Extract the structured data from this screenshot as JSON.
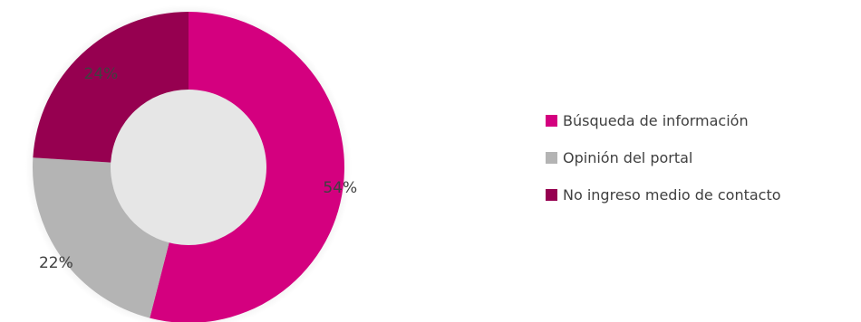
{
  "chart_data": {
    "type": "pie",
    "donut": true,
    "labels": [
      "Búsqueda de información",
      "Opinión del portal",
      "No ingreso medio de contacto"
    ],
    "values": [
      54,
      22,
      24
    ],
    "value_labels": [
      "54%",
      "22%",
      "24%"
    ],
    "colors": [
      "#d4007f",
      "#b4b4b4",
      "#960050"
    ],
    "legend_position": "right"
  }
}
